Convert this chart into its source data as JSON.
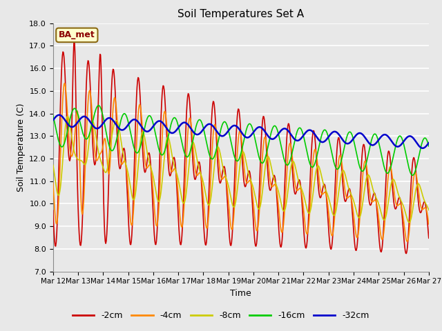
{
  "title": "Soil Temperatures Set A",
  "xlabel": "Time",
  "ylabel": "Soil Temperature (C)",
  "annotation": "BA_met",
  "ylim": [
    7.0,
    18.0
  ],
  "yticks": [
    7.0,
    8.0,
    9.0,
    10.0,
    11.0,
    12.0,
    13.0,
    14.0,
    15.0,
    16.0,
    17.0,
    18.0
  ],
  "series_labels": [
    "-2cm",
    "-4cm",
    "-8cm",
    "-16cm",
    "-32cm"
  ],
  "series_colors": [
    "#cc0000",
    "#ff8800",
    "#cccc00",
    "#00cc00",
    "#0000cc"
  ],
  "series_linewidths": [
    1.2,
    1.2,
    1.2,
    1.2,
    1.8
  ],
  "background_color": "#e8e8e8",
  "plot_bg_color": "#e8e8e8",
  "grid_color": "#ffffff",
  "n_points": 721,
  "x_start": 12,
  "x_end": 27,
  "xtick_positions": [
    12,
    13,
    14,
    15,
    16,
    17,
    18,
    19,
    20,
    21,
    22,
    23,
    24,
    25,
    26,
    27
  ],
  "xtick_labels": [
    "Mar 12",
    "Mar 13",
    "Mar 14",
    "Mar 15",
    "Mar 16",
    "Mar 17",
    "Mar 18",
    "Mar 19",
    "Mar 20",
    "Mar 21",
    "Mar 22",
    "Mar 23",
    "Mar 24",
    "Mar 25",
    "Mar 26",
    "Mar 27"
  ]
}
